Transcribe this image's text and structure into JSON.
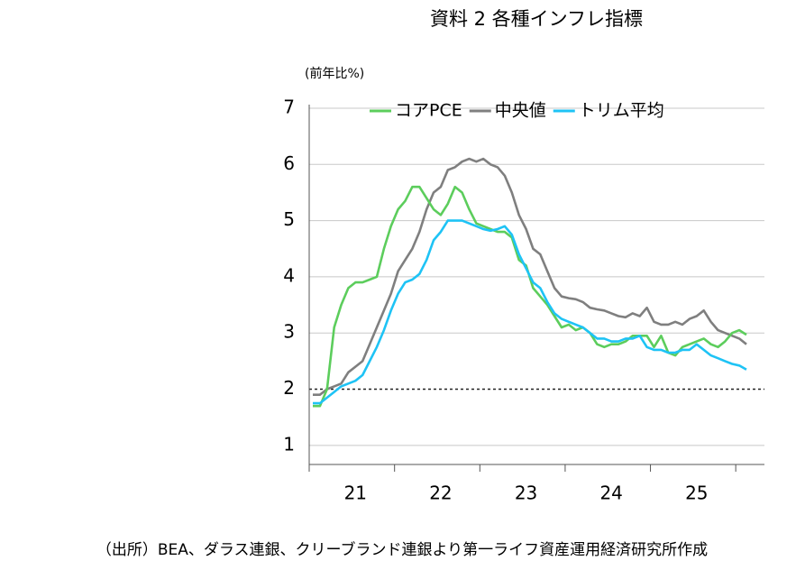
{
  "chart_data": {
    "type": "line",
    "title": "資料 2  各種インフレ指標",
    "y_label": "(前年比%)",
    "footnote": "（出所）BEA、ダラス連銀、クリーブランド連銀より第一ライフ資産運用経済研究所作成",
    "categories": [
      null,
      null,
      null,
      null,
      null,
      null,
      "21",
      null,
      null,
      null,
      null,
      null,
      null,
      null,
      null,
      null,
      null,
      null,
      "22",
      null,
      null,
      null,
      null,
      null,
      null,
      null,
      null,
      null,
      null,
      null,
      "23",
      null,
      null,
      null,
      null,
      null,
      null,
      null,
      null,
      null,
      null,
      null,
      "24",
      null,
      null,
      null,
      null,
      null,
      null,
      null,
      null,
      null,
      null,
      null,
      "25",
      null,
      null,
      null,
      null,
      null,
      null,
      null
    ],
    "series": [
      {
        "name": "コアPCE",
        "color": "#5ccd5c",
        "values": [
          1.7,
          1.7,
          2.0,
          3.1,
          3.5,
          3.8,
          3.9,
          3.9,
          3.95,
          4.0,
          4.5,
          4.9,
          5.2,
          5.35,
          5.6,
          5.6,
          5.4,
          5.2,
          5.1,
          5.3,
          5.6,
          5.5,
          5.2,
          4.95,
          4.9,
          4.85,
          4.8,
          4.8,
          4.7,
          4.3,
          4.2,
          3.8,
          3.65,
          3.5,
          3.3,
          3.1,
          3.15,
          3.05,
          3.1,
          3.0,
          2.8,
          2.75,
          2.8,
          2.8,
          2.85,
          2.95,
          2.95,
          2.95,
          2.75,
          2.95,
          2.65,
          2.6,
          2.75,
          2.8,
          2.85,
          2.9,
          2.8,
          2.75,
          2.85,
          3.0,
          3.05,
          2.97
        ]
      },
      {
        "name": "中央値",
        "color": "#7f7f7f",
        "values": [
          1.9,
          1.9,
          2.0,
          2.05,
          2.1,
          2.3,
          2.4,
          2.5,
          2.8,
          3.1,
          3.4,
          3.7,
          4.1,
          4.3,
          4.5,
          4.8,
          5.2,
          5.5,
          5.6,
          5.9,
          5.95,
          6.05,
          6.1,
          6.05,
          6.1,
          6.0,
          5.95,
          5.8,
          5.5,
          5.1,
          4.85,
          4.5,
          4.4,
          4.1,
          3.8,
          3.65,
          3.62,
          3.6,
          3.55,
          3.45,
          3.42,
          3.4,
          3.35,
          3.3,
          3.28,
          3.35,
          3.3,
          3.45,
          3.2,
          3.15,
          3.15,
          3.2,
          3.15,
          3.25,
          3.3,
          3.4,
          3.2,
          3.05,
          3.0,
          2.95,
          2.9,
          2.8
        ]
      },
      {
        "name": "トリム平均",
        "color": "#1ec3f5",
        "values": [
          1.75,
          1.75,
          1.85,
          1.95,
          2.05,
          2.1,
          2.15,
          2.25,
          2.5,
          2.75,
          3.05,
          3.4,
          3.7,
          3.9,
          3.95,
          4.05,
          4.3,
          4.65,
          4.8,
          5.0,
          5.0,
          5.0,
          4.95,
          4.9,
          4.85,
          4.82,
          4.85,
          4.9,
          4.75,
          4.4,
          4.15,
          3.9,
          3.8,
          3.55,
          3.35,
          3.25,
          3.2,
          3.15,
          3.1,
          3.0,
          2.9,
          2.9,
          2.85,
          2.85,
          2.9,
          2.9,
          2.95,
          2.75,
          2.7,
          2.7,
          2.65,
          2.65,
          2.7,
          2.7,
          2.8,
          2.7,
          2.6,
          2.55,
          2.5,
          2.45,
          2.42,
          2.35
        ]
      }
    ],
    "reference_line": 2,
    "ylim": [
      0.66,
      7
    ],
    "yticks": [
      1,
      2,
      3,
      4,
      5,
      6,
      7
    ],
    "grid": true,
    "legend": "top"
  }
}
